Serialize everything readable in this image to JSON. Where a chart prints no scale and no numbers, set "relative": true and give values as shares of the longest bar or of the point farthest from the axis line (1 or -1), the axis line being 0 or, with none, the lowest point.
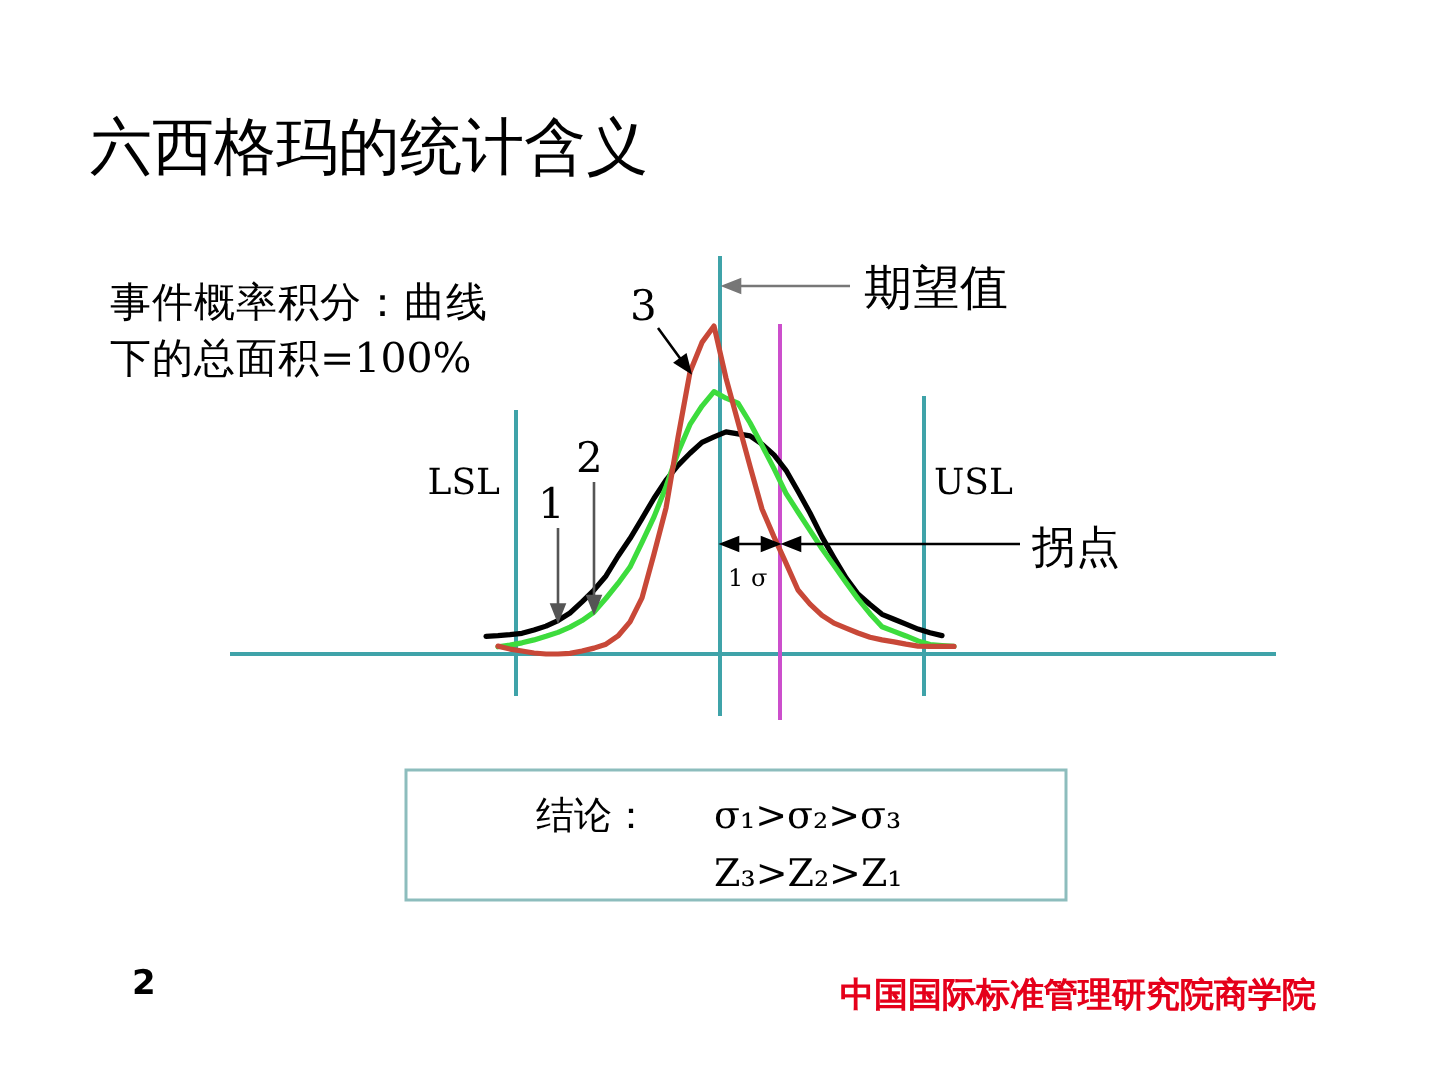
{
  "chart_data": {
    "type": "line",
    "title": "六西格玛的统计含义",
    "relative": true,
    "categories": [
      null,
      null,
      null,
      null,
      null,
      null,
      null,
      null,
      null,
      null,
      null,
      null,
      null,
      null,
      null,
      null,
      null,
      null,
      null,
      null,
      null,
      null,
      null,
      null,
      null,
      null,
      null,
      null,
      null,
      null,
      null,
      null,
      null,
      null,
      null,
      null,
      null,
      null,
      null,
      null,
      null
    ],
    "series": [
      {
        "name": "1",
        "color": "#000000",
        "values": [
          0.054,
          0.056,
          0.059,
          0.063,
          0.073,
          0.085,
          0.102,
          0.125,
          0.159,
          0.195,
          0.238,
          0.298,
          0.352,
          0.413,
          0.475,
          0.53,
          0.575,
          0.612,
          0.645,
          0.662,
          0.677,
          0.671,
          0.665,
          0.64,
          0.607,
          0.56,
          0.496,
          0.43,
          0.357,
          0.293,
          0.232,
          0.183,
          0.151,
          0.121,
          0.106,
          0.091,
          0.076,
          0.065,
          0.056,
          null,
          null
        ]
      },
      {
        "name": "2",
        "color": "#3ddc3d",
        "values": [
          null,
          0.022,
          0.027,
          0.034,
          0.043,
          0.054,
          0.066,
          0.082,
          0.102,
          0.128,
          0.17,
          0.215,
          0.265,
          0.34,
          0.418,
          0.51,
          0.614,
          0.7,
          0.756,
          0.8,
          0.78,
          0.765,
          0.705,
          0.636,
          0.565,
          0.49,
          0.433,
          0.377,
          0.321,
          0.27,
          0.218,
          0.168,
          0.123,
          0.083,
          0.069,
          0.055,
          0.04,
          0.029,
          0.026,
          0.023,
          null
        ]
      },
      {
        "name": "3",
        "color": "#c84838",
        "values": [
          null,
          0.024,
          0.015,
          0.009,
          0.003,
          0,
          0,
          0.002,
          0.009,
          0.018,
          0.03,
          0.055,
          0.098,
          0.171,
          0.305,
          0.445,
          0.66,
          0.86,
          0.95,
          1,
          0.841,
          0.707,
          0.573,
          0.442,
          0.357,
          0.277,
          0.195,
          0.152,
          0.118,
          0.094,
          0.079,
          0.064,
          0.051,
          0.043,
          0.037,
          0.03,
          0.024,
          0.023,
          0.023,
          0.023,
          null
        ]
      }
    ],
    "annotations": [
      "事件概率积分：曲线下的总面积=100%",
      "期望值",
      "LSL",
      "USL",
      "拐点",
      "1 σ",
      "结论：",
      "σ₁>σ₂>σ₃",
      "Z₃>Z₂>Z₁",
      "2",
      "中国国际标准管理研究院商学院"
    ]
  }
}
